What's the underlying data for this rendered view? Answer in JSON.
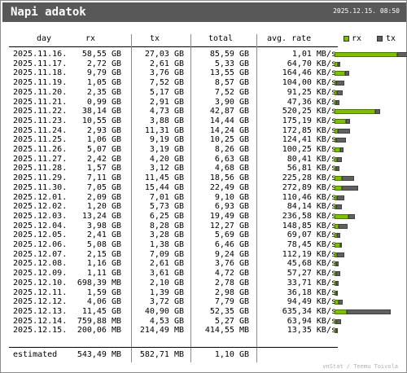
{
  "header": {
    "title": "Napi adatok",
    "datetime": "2025.12.15. 08:50"
  },
  "columns": {
    "day": "day",
    "rx": "rx",
    "tx": "tx",
    "total": "total",
    "avg_rate": "avg. rate"
  },
  "legend": {
    "rx_label": "rx",
    "tx_label": "tx",
    "rx_color": "#7fbf00",
    "tx_color": "#606060"
  },
  "rows": [
    {
      "day": "2025.11.16.",
      "rx": "58,55 GB",
      "tx": "27,03 GB",
      "total": "85,59 GB",
      "rate": "1,01 MB/s",
      "rx_frac": 0.453,
      "tx_frac": 0.209
    },
    {
      "day": "2025.11.17.",
      "rx": "2,72 GB",
      "tx": "2,61 GB",
      "total": "5,33 GB",
      "rate": "64,70 KB/s",
      "rx_frac": 0.021,
      "tx_frac": 0.02
    },
    {
      "day": "2025.11.18.",
      "rx": "9,79 GB",
      "tx": "3,76 GB",
      "total": "13,55 GB",
      "rate": "164,46 KB/s",
      "rx_frac": 0.076,
      "tx_frac": 0.029
    },
    {
      "day": "2025.11.19.",
      "rx": "1,05 GB",
      "tx": "7,52 GB",
      "total": "8,57 GB",
      "rate": "104,00 KB/s",
      "rx_frac": 0.008,
      "tx_frac": 0.058
    },
    {
      "day": "2025.11.20.",
      "rx": "2,35 GB",
      "tx": "5,17 GB",
      "total": "7,52 GB",
      "rate": "91,25 KB/s",
      "rx_frac": 0.018,
      "tx_frac": 0.04
    },
    {
      "day": "2025.11.21.",
      "rx": "0,99 GB",
      "tx": "2,91 GB",
      "total": "3,90 GB",
      "rate": "47,36 KB/s",
      "rx_frac": 0.008,
      "tx_frac": 0.023
    },
    {
      "day": "2025.11.22.",
      "rx": "38,14 GB",
      "tx": "4,73 GB",
      "total": "42,87 GB",
      "rate": "520,25 KB/s",
      "rx_frac": 0.295,
      "tx_frac": 0.037
    },
    {
      "day": "2025.11.23.",
      "rx": "10,55 GB",
      "tx": "3,88 GB",
      "total": "14,44 GB",
      "rate": "175,19 KB/s",
      "rx_frac": 0.082,
      "tx_frac": 0.03
    },
    {
      "day": "2025.11.24.",
      "rx": "2,93 GB",
      "tx": "11,31 GB",
      "total": "14,24 GB",
      "rate": "172,85 KB/s",
      "rx_frac": 0.023,
      "tx_frac": 0.088
    },
    {
      "day": "2025.11.25.",
      "rx": "1,06 GB",
      "tx": "9,19 GB",
      "total": "10,25 GB",
      "rate": "124,41 KB/s",
      "rx_frac": 0.008,
      "tx_frac": 0.071
    },
    {
      "day": "2025.11.26.",
      "rx": "5,07 GB",
      "tx": "3,19 GB",
      "total": "8,26 GB",
      "rate": "100,25 KB/s",
      "rx_frac": 0.039,
      "tx_frac": 0.025
    },
    {
      "day": "2025.11.27.",
      "rx": "2,42 GB",
      "tx": "4,20 GB",
      "total": "6,63 GB",
      "rate": "80,41 KB/s",
      "rx_frac": 0.019,
      "tx_frac": 0.033
    },
    {
      "day": "2025.11.28.",
      "rx": "1,57 GB",
      "tx": "3,12 GB",
      "total": "4,68 GB",
      "rate": "56,81 KB/s",
      "rx_frac": 0.012,
      "tx_frac": 0.024
    },
    {
      "day": "2025.11.29.",
      "rx": "7,11 GB",
      "tx": "11,45 GB",
      "total": "18,56 GB",
      "rate": "225,28 KB/s",
      "rx_frac": 0.055,
      "tx_frac": 0.089
    },
    {
      "day": "2025.11.30.",
      "rx": "7,05 GB",
      "tx": "15,44 GB",
      "total": "22,49 GB",
      "rate": "272,89 KB/s",
      "rx_frac": 0.055,
      "tx_frac": 0.12
    },
    {
      "day": "2025.12.01.",
      "rx": "2,09 GB",
      "tx": "7,01 GB",
      "total": "9,10 GB",
      "rate": "110,46 KB/s",
      "rx_frac": 0.016,
      "tx_frac": 0.054
    },
    {
      "day": "2025.12.02.",
      "rx": "1,20 GB",
      "tx": "5,73 GB",
      "total": "6,93 GB",
      "rate": "84,14 KB/s",
      "rx_frac": 0.009,
      "tx_frac": 0.044
    },
    {
      "day": "2025.12.03.",
      "rx": "13,24 GB",
      "tx": "6,25 GB",
      "total": "19,49 GB",
      "rate": "236,58 KB/s",
      "rx_frac": 0.103,
      "tx_frac": 0.048
    },
    {
      "day": "2025.12.04.",
      "rx": "3,98 GB",
      "tx": "8,28 GB",
      "total": "12,27 GB",
      "rate": "148,85 KB/s",
      "rx_frac": 0.031,
      "tx_frac": 0.064
    },
    {
      "day": "2025.12.05.",
      "rx": "2,41 GB",
      "tx": "3,28 GB",
      "total": "5,69 GB",
      "rate": "69,07 KB/s",
      "rx_frac": 0.019,
      "tx_frac": 0.025
    },
    {
      "day": "2025.12.06.",
      "rx": "5,08 GB",
      "tx": "1,38 GB",
      "total": "6,46 GB",
      "rate": "78,45 KB/s",
      "rx_frac": 0.039,
      "tx_frac": 0.011
    },
    {
      "day": "2025.12.07.",
      "rx": "2,15 GB",
      "tx": "7,09 GB",
      "total": "9,24 GB",
      "rate": "112,19 KB/s",
      "rx_frac": 0.017,
      "tx_frac": 0.055
    },
    {
      "day": "2025.12.08.",
      "rx": "1,16 GB",
      "tx": "2,61 GB",
      "total": "3,76 GB",
      "rate": "45,68 KB/s",
      "rx_frac": 0.009,
      "tx_frac": 0.02
    },
    {
      "day": "2025.12.09.",
      "rx": "1,11 GB",
      "tx": "3,61 GB",
      "total": "4,72 GB",
      "rate": "57,27 KB/s",
      "rx_frac": 0.009,
      "tx_frac": 0.028
    },
    {
      "day": "2025.12.10.",
      "rx": "698,39 MB",
      "tx": "2,10 GB",
      "total": "2,78 GB",
      "rate": "33,71 KB/s",
      "rx_frac": 0.005,
      "tx_frac": 0.016
    },
    {
      "day": "2025.12.11.",
      "rx": "1,59 GB",
      "tx": "1,39 GB",
      "total": "2,98 GB",
      "rate": "36,18 KB/s",
      "rx_frac": 0.012,
      "tx_frac": 0.011
    },
    {
      "day": "2025.12.12.",
      "rx": "4,06 GB",
      "tx": "3,72 GB",
      "total": "7,79 GB",
      "rate": "94,49 KB/s",
      "rx_frac": 0.031,
      "tx_frac": 0.029
    },
    {
      "day": "2025.12.13.",
      "rx": "11,45 GB",
      "tx": "40,90 GB",
      "total": "52,35 GB",
      "rate": "635,34 KB/s",
      "rx_frac": 0.089,
      "tx_frac": 0.317
    },
    {
      "day": "2025.12.14.",
      "rx": "759,88 MB",
      "tx": "4,53 GB",
      "total": "5,27 GB",
      "rate": "63,94 KB/s",
      "rx_frac": 0.006,
      "tx_frac": 0.035
    },
    {
      "day": "2025.12.15.",
      "rx": "200,06 MB",
      "tx": "214,49 MB",
      "total": "414,55 MB",
      "rate": "13,35 KB/s",
      "rx_frac": 0.002,
      "tx_frac": 0.002
    }
  ],
  "estimated": {
    "label": "estimated",
    "rx": "543,49 MB",
    "tx": "582,71 MB",
    "total": "1,10 GB"
  },
  "credit": "vnStat / Teemu Toivola"
}
